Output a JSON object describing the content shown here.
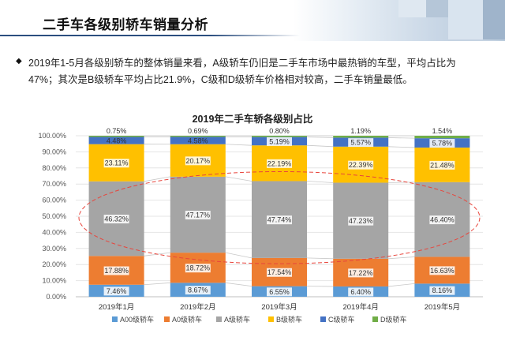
{
  "page": {
    "title": "二手车各级别轿车销量分析",
    "description": "2019年1-5月各级别轿车的整体销量来看，A级轿车仍旧是二手车市场中最热销的车型，平均占比为47%；其次是B级轿车平均占比21.9%，C级和D级轿车价格相对较高，二手车销量最低。"
  },
  "colors": {
    "accent": "#2b4e7f"
  },
  "chart_data": {
    "type": "bar",
    "stacked": true,
    "title": "2019年二手车轿各级别占比",
    "categories": [
      "2019年1月",
      "2019年2月",
      "2019年3月",
      "2019年4月",
      "2019年5月"
    ],
    "yticks": [
      "0.00%",
      "10.00%",
      "20.00%",
      "30.00%",
      "40.00%",
      "50.00%",
      "60.00%",
      "70.00%",
      "80.00%",
      "90.00%",
      "100.00%"
    ],
    "ylim": [
      0,
      100
    ],
    "legend_position": "bottom",
    "series": [
      {
        "name": "A00级轿车",
        "color": "#5b9bd5",
        "values": [
          7.46,
          8.67,
          6.55,
          6.4,
          8.16
        ],
        "labels": [
          "7.46%",
          "8.67%",
          "6.55%",
          "6.40%",
          "8.16%"
        ]
      },
      {
        "name": "A0级轿车",
        "color": "#ed7d31",
        "values": [
          17.88,
          18.72,
          17.54,
          17.22,
          16.63
        ],
        "labels": [
          "17.88%",
          "18.72%",
          "17.54%",
          "17.22%",
          "16.63%"
        ]
      },
      {
        "name": "A级轿车",
        "color": "#a5a5a5",
        "values": [
          46.32,
          47.17,
          47.74,
          47.23,
          46.4
        ],
        "labels": [
          "46.32%",
          "47.17%",
          "47.74%",
          "47.23%",
          "46.40%"
        ]
      },
      {
        "name": "B级轿车",
        "color": "#ffc000",
        "values": [
          23.11,
          20.17,
          22.19,
          22.39,
          21.48
        ],
        "labels": [
          "23.11%",
          "20.17%",
          "22.19%",
          "22.39%",
          "21.48%"
        ]
      },
      {
        "name": "C级轿车",
        "color": "#4472c4",
        "values": [
          4.48,
          4.58,
          5.19,
          5.57,
          5.78
        ],
        "labels": [
          "4.48%",
          "4.58%",
          "5.19%",
          "5.57%",
          "5.78%"
        ]
      },
      {
        "name": "D级轿车",
        "color": "#70ad47",
        "values": [
          0.75,
          0.69,
          0.8,
          1.19,
          1.54
        ],
        "labels": [
          "0.75%",
          "0.69%",
          "0.80%",
          "1.19%",
          "1.54%"
        ]
      }
    ],
    "highlight_series": "A级轿车",
    "highlight_color": "#e8453c"
  }
}
